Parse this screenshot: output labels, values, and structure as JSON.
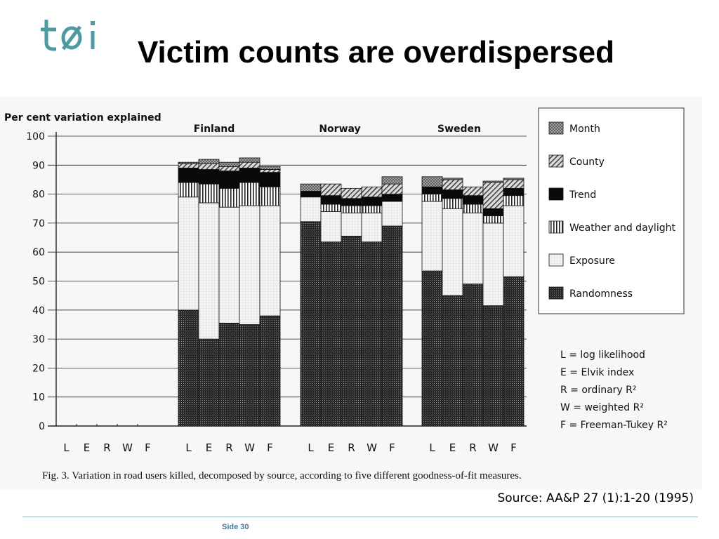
{
  "header": {
    "logo_text": "tøi",
    "title": "Victim counts are overdispersed"
  },
  "source": "Source: AA&P 27 (1):1-20 (1995)",
  "footer": {
    "slide_label": "Side 30"
  },
  "colors": {
    "brand_teal": "#4f9aa0",
    "footer_blue": "#3b7ea1"
  },
  "chart_data": {
    "type": "bar",
    "stacked": true,
    "ylabel": "Per cent variation explained",
    "ylim": [
      0,
      100
    ],
    "yticks": [
      0,
      10,
      20,
      30,
      40,
      50,
      60,
      70,
      80,
      90,
      100
    ],
    "grid": true,
    "groups": [
      "",
      "Finland",
      "Norway",
      "Sweden"
    ],
    "categories": [
      "L",
      "E",
      "R",
      "W",
      "F"
    ],
    "caption": "Fig. 3.  Variation in road users killed, decomposed by source, according to five different goodness-of-fit measures.",
    "legend_position": "right",
    "series": [
      {
        "name": "Randomness",
        "pattern": "dense-dots",
        "values": [
          [
            0,
            0,
            0,
            0,
            0
          ],
          [
            40,
            30,
            35.5,
            35,
            38
          ],
          [
            70.5,
            63.5,
            65.5,
            63.5,
            69
          ],
          [
            53.5,
            45,
            49,
            41.5,
            51.5
          ]
        ]
      },
      {
        "name": "Exposure",
        "pattern": "light",
        "values": [
          [
            0,
            0,
            0,
            0,
            0
          ],
          [
            39,
            47,
            40,
            41,
            38
          ],
          [
            8.5,
            10.5,
            8,
            10,
            8.5
          ],
          [
            24,
            30,
            24.5,
            28.5,
            24.5
          ]
        ]
      },
      {
        "name": "Weather and daylight",
        "pattern": "vertical-lines",
        "values": [
          [
            0,
            0,
            0,
            0,
            0
          ],
          [
            5,
            6.5,
            6.5,
            8,
            6.5
          ],
          [
            0,
            2.5,
            2.5,
            2.5,
            0
          ],
          [
            2.5,
            3.5,
            3,
            2.5,
            3.5
          ]
        ]
      },
      {
        "name": "Trend",
        "pattern": "solid-black",
        "values": [
          [
            0,
            0,
            0,
            0,
            0
          ],
          [
            5,
            5,
            6,
            5,
            5
          ],
          [
            2,
            3,
            2.5,
            3,
            2.5
          ],
          [
            2.5,
            3,
            3,
            2.5,
            2.5
          ]
        ]
      },
      {
        "name": "County",
        "pattern": "diagonal",
        "values": [
          [
            0,
            0,
            0,
            0,
            0
          ],
          [
            1.5,
            2,
            1.5,
            2,
            1
          ],
          [
            0,
            4,
            3.5,
            3.5,
            3.5
          ],
          [
            0,
            3.5,
            3,
            9,
            3
          ]
        ]
      },
      {
        "name": "Month",
        "pattern": "cross-hatch",
        "values": [
          [
            0,
            0,
            0,
            0,
            0
          ],
          [
            0.5,
            1.5,
            1.5,
            1.5,
            1
          ],
          [
            2.5,
            0,
            0,
            0,
            2.5
          ],
          [
            3.5,
            0.5,
            0,
            0.5,
            0.5
          ]
        ]
      }
    ],
    "legend_order": [
      "Month",
      "County",
      "Trend",
      "Weather and daylight",
      "Exposure",
      "Randomness"
    ],
    "measures_key": [
      "L = log likelihood",
      "E = Elvik index",
      "R = ordinary R²",
      "W = weighted R²",
      "F = Freeman-Tukey R²"
    ]
  }
}
